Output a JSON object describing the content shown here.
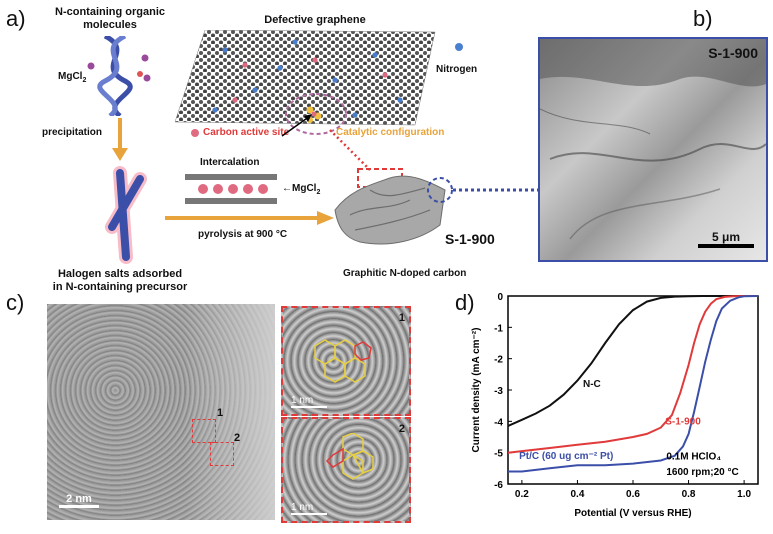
{
  "panels": {
    "a": {
      "letter": "a)",
      "n_molecules": "N-containing organic molecules",
      "mgcl2": "MgCl",
      "mgcl2_sub": "2",
      "precipitation": "precipitation",
      "halogen_caption_1": "Halogen  salts adsorbed",
      "halogen_caption_2": "in N-containing precursor",
      "defective_graphene": "Defective graphene",
      "nitrogen": "Nitrogen",
      "carbon_active_site": "Carbon  active site",
      "catalytic_configuration": "Catalytic configuration",
      "intercalation": "Intercalation",
      "pyrolysis": "pyrolysis at 900 °C",
      "sample_name": "S-1-900",
      "graphitic_caption": "Graphitic N-doped carbon"
    },
    "b": {
      "letter": "b)",
      "sample": "S-1-900",
      "scalebar": "5 μm"
    },
    "c": {
      "letter": "c)",
      "scalebar_main": "2 nm",
      "region1": "1",
      "region2": "2",
      "inset1_label": "1",
      "inset1_scale": "1 nm",
      "inset2_label": "2",
      "inset2_scale": "1 nm"
    },
    "d": {
      "letter": "d)"
    }
  },
  "colors": {
    "blue": "#3b4ea8",
    "red": "#e03a3a",
    "black": "#111111",
    "orange": "#e8a33a",
    "frame_blue": "#3b4ea8",
    "pink": "#e05a7a"
  },
  "chart_data": {
    "type": "line",
    "xlabel": "Potential (V versus RHE)",
    "ylabel": "Current density (mA cm⁻²)",
    "xlim": [
      0.15,
      1.05
    ],
    "ylim": [
      -6,
      0
    ],
    "xticks": [
      "0.2",
      "0.4",
      "0.6",
      "0.8",
      "1.0"
    ],
    "yticks": [
      "0",
      "-1",
      "-2",
      "-3",
      "-4",
      "-5",
      "-6"
    ],
    "annotations": [
      "0.1M HClO₄",
      "1600 rpm;20 °C"
    ],
    "series": [
      {
        "name": "N-C",
        "color": "#111111",
        "x": [
          0.15,
          0.2,
          0.25,
          0.3,
          0.35,
          0.4,
          0.45,
          0.5,
          0.55,
          0.6,
          0.65,
          0.7,
          0.75,
          0.8,
          0.85,
          0.9,
          0.95,
          1.0,
          1.05
        ],
        "y": [
          -4.15,
          -3.95,
          -3.75,
          -3.5,
          -3.15,
          -2.7,
          -2.15,
          -1.5,
          -0.9,
          -0.45,
          -0.18,
          -0.06,
          -0.02,
          -0.01,
          0,
          0,
          0,
          0,
          0
        ]
      },
      {
        "name": "S-1-900",
        "color": "#e03a3a",
        "x": [
          0.15,
          0.2,
          0.3,
          0.4,
          0.5,
          0.6,
          0.65,
          0.7,
          0.74,
          0.77,
          0.8,
          0.82,
          0.84,
          0.86,
          0.88,
          0.9,
          0.93,
          0.96,
          1.0,
          1.05
        ],
        "y": [
          -5.0,
          -4.95,
          -4.85,
          -4.75,
          -4.65,
          -4.5,
          -4.4,
          -4.2,
          -3.8,
          -3.1,
          -2.2,
          -1.5,
          -0.9,
          -0.5,
          -0.25,
          -0.1,
          -0.03,
          -0.01,
          0,
          0
        ]
      },
      {
        "name": "Pt/C (60 ug cm⁻² Pt)",
        "color": "#3b4ea8",
        "x": [
          0.15,
          0.2,
          0.3,
          0.4,
          0.5,
          0.6,
          0.7,
          0.75,
          0.78,
          0.8,
          0.82,
          0.84,
          0.86,
          0.88,
          0.9,
          0.92,
          0.95,
          0.98,
          1.0,
          1.05
        ],
        "y": [
          -5.6,
          -5.6,
          -5.5,
          -5.4,
          -5.4,
          -5.35,
          -5.25,
          -5.1,
          -4.8,
          -4.4,
          -3.7,
          -2.9,
          -2.1,
          -1.4,
          -0.8,
          -0.4,
          -0.15,
          -0.04,
          -0.01,
          0
        ]
      }
    ]
  }
}
